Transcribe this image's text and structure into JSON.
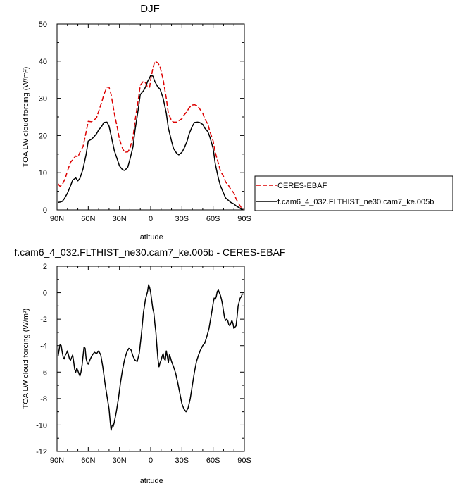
{
  "chart_data": [
    {
      "type": "line",
      "title": "DJF",
      "xlabel": "latitude",
      "ylabel": "TOA LW cloud forcing (W/m²)",
      "xlim": [
        90,
        -90
      ],
      "ylim": [
        0,
        50
      ],
      "x_ticks": [
        90,
        60,
        30,
        0,
        -30,
        -60,
        -90
      ],
      "x_tick_labels": [
        "90N",
        "60N",
        "30N",
        "0",
        "30S",
        "60S",
        "90S"
      ],
      "y_ticks": [
        0,
        10,
        20,
        30,
        40,
        50
      ],
      "y_tick_labels": [
        "0",
        "10",
        "20",
        "30",
        "40",
        "50"
      ],
      "legend": "right",
      "series": [
        {
          "name": "CERES-EBAF",
          "color": "#dd0000",
          "dash": "dashed",
          "x": [
            89,
            87,
            85,
            82,
            80,
            77,
            75,
            72,
            70,
            68,
            65,
            62,
            60,
            57,
            55,
            52,
            50,
            47,
            45,
            42,
            40,
            38,
            35,
            32,
            30,
            27,
            25,
            22,
            20,
            17,
            15,
            12,
            10,
            7,
            5,
            3,
            1,
            0,
            -2,
            -4,
            -7,
            -9,
            -12,
            -15,
            -17,
            -20,
            -22,
            -25,
            -27,
            -30,
            -32,
            -35,
            -37,
            -40,
            -42,
            -45,
            -47,
            -50,
            -52,
            -55,
            -57,
            -60,
            -62,
            -65,
            -67,
            -70,
            -72,
            -75,
            -77,
            -80,
            -82,
            -85,
            -87,
            -89
          ],
          "y": [
            7.0,
            6.3,
            6.8,
            8.5,
            10.5,
            12.8,
            13.5,
            14.5,
            14.2,
            15.5,
            17.0,
            21.0,
            23.8,
            23.7,
            24.0,
            24.8,
            26.5,
            29.0,
            31.0,
            33.0,
            33.0,
            31.0,
            26.0,
            22.0,
            19.0,
            16.5,
            15.5,
            15.6,
            16.5,
            19.5,
            24.0,
            29.5,
            33.5,
            34.6,
            34.2,
            33.0,
            33.0,
            35.0,
            38.0,
            40.0,
            39.5,
            38.5,
            35.0,
            30.0,
            26.0,
            24.0,
            23.6,
            23.6,
            24.0,
            24.5,
            25.5,
            26.5,
            27.5,
            28.2,
            28.3,
            28.0,
            27.2,
            26.0,
            24.5,
            23.0,
            21.0,
            18.5,
            15.5,
            12.5,
            10.5,
            9.0,
            7.5,
            6.5,
            5.5,
            4.5,
            3.0,
            1.5,
            0.6,
            0.3
          ]
        },
        {
          "name": "f.cam6_4_032.FLTHIST_ne30.cam7_ke.005b",
          "color": "#000000",
          "dash": "solid",
          "x": [
            89,
            87,
            85,
            83,
            80,
            77,
            75,
            72,
            70,
            68,
            65,
            62,
            60,
            57,
            55,
            52,
            50,
            47,
            45,
            42,
            40,
            38,
            35,
            32,
            30,
            27,
            25,
            22,
            20,
            17,
            15,
            12,
            10,
            7,
            5,
            3,
            1,
            0,
            -2,
            -4,
            -7,
            -9,
            -12,
            -15,
            -17,
            -20,
            -22,
            -25,
            -27,
            -30,
            -32,
            -35,
            -37,
            -40,
            -42,
            -45,
            -47,
            -50,
            -52,
            -55,
            -57,
            -60,
            -62,
            -65,
            -67,
            -70,
            -72,
            -75,
            -77,
            -80,
            -82,
            -85,
            -87,
            -89
          ],
          "y": [
            2.0,
            2.1,
            2.3,
            3.0,
            4.5,
            6.5,
            8.0,
            8.6,
            7.8,
            8.5,
            11.0,
            15.0,
            18.5,
            19.0,
            19.5,
            20.5,
            21.5,
            22.5,
            23.5,
            23.6,
            22.5,
            20.0,
            16.0,
            13.5,
            11.8,
            10.8,
            10.6,
            11.5,
            13.5,
            17.0,
            21.5,
            27.0,
            31.0,
            32.0,
            33.0,
            34.5,
            35.5,
            36.2,
            36.0,
            34.5,
            33.0,
            32.5,
            30.0,
            26.0,
            22.0,
            18.5,
            16.5,
            15.2,
            14.8,
            15.5,
            16.5,
            18.5,
            20.5,
            22.5,
            23.5,
            23.6,
            23.5,
            23.0,
            22.0,
            21.0,
            19.5,
            16.5,
            12.5,
            8.5,
            6.5,
            4.5,
            3.2,
            2.5,
            2.0,
            1.6,
            1.1,
            0.6,
            0.2,
            0.1
          ]
        }
      ]
    },
    {
      "type": "line",
      "title": "f.cam6_4_032.FLTHIST_ne30.cam7_ke.005b - CERES-EBAF",
      "xlabel": "latitude",
      "ylabel": "TOA LW cloud forcing (W/m²)",
      "xlim": [
        90,
        -90
      ],
      "ylim": [
        -12,
        2
      ],
      "x_ticks": [
        90,
        60,
        30,
        0,
        -30,
        -60,
        -90
      ],
      "x_tick_labels": [
        "90N",
        "60N",
        "30N",
        "0",
        "30S",
        "60S",
        "90S"
      ],
      "y_ticks": [
        -12,
        -10,
        -8,
        -6,
        -4,
        -2,
        0,
        2
      ],
      "y_tick_labels": [
        "-12",
        "-10",
        "-8",
        "-6",
        "-4",
        "-2",
        "0",
        "2"
      ],
      "series": [
        {
          "color": "#000000",
          "dash": "solid",
          "x": [
            89,
            88,
            87,
            86,
            85,
            84,
            83,
            82,
            81,
            80,
            79,
            78,
            77,
            76,
            75,
            74,
            73,
            72,
            71,
            70,
            69,
            68,
            67,
            66,
            65,
            64,
            63,
            62,
            61,
            60,
            58,
            56,
            54,
            52,
            50,
            48,
            46,
            44,
            42,
            40,
            39,
            38,
            37,
            36,
            35,
            33,
            31,
            29,
            27,
            25,
            23,
            21,
            19,
            17,
            15,
            13,
            11,
            9,
            7,
            5,
            3,
            2,
            1,
            0,
            -1,
            -2,
            -3,
            -4,
            -5,
            -6,
            -7,
            -8,
            -9,
            -10,
            -11,
            -12,
            -13,
            -14,
            -15,
            -16,
            -17,
            -18,
            -19,
            -20,
            -22,
            -24,
            -26,
            -28,
            -30,
            -32,
            -34,
            -36,
            -38,
            -40,
            -42,
            -44,
            -46,
            -48,
            -50,
            -52,
            -54,
            -56,
            -58,
            -60,
            -61,
            -62,
            -63,
            -64,
            -65,
            -66,
            -67,
            -68,
            -69,
            -70,
            -71,
            -72,
            -73,
            -74,
            -75,
            -76,
            -77,
            -78,
            -79,
            -80,
            -81,
            -82,
            -83,
            -84,
            -85,
            -86,
            -87,
            -88,
            -89
          ],
          "y": [
            -4.8,
            -4.3,
            -3.9,
            -4.0,
            -4.5,
            -4.9,
            -5.0,
            -4.7,
            -4.6,
            -4.4,
            -4.7,
            -5.0,
            -5.1,
            -4.9,
            -4.7,
            -5.2,
            -5.8,
            -6.0,
            -5.7,
            -5.9,
            -6.1,
            -6.3,
            -6.0,
            -5.5,
            -4.8,
            -4.1,
            -4.2,
            -5.0,
            -5.3,
            -5.4,
            -5.0,
            -4.7,
            -4.5,
            -4.6,
            -4.4,
            -4.7,
            -5.6,
            -6.8,
            -7.8,
            -8.8,
            -9.7,
            -10.4,
            -10.0,
            -10.1,
            -9.8,
            -9.0,
            -8.0,
            -6.8,
            -5.8,
            -5.0,
            -4.5,
            -4.2,
            -4.3,
            -4.8,
            -5.1,
            -5.2,
            -4.6,
            -3.2,
            -1.5,
            -0.5,
            0.1,
            0.6,
            0.4,
            0.0,
            -0.6,
            -1.2,
            -1.5,
            -2.3,
            -3.0,
            -4.1,
            -5.0,
            -5.6,
            -5.3,
            -5.1,
            -4.8,
            -4.6,
            -5.0,
            -5.1,
            -4.4,
            -4.8,
            -5.3,
            -4.7,
            -4.9,
            -5.2,
            -5.6,
            -6.1,
            -6.8,
            -7.6,
            -8.4,
            -8.8,
            -9.0,
            -8.7,
            -8.0,
            -7.0,
            -6.0,
            -5.2,
            -4.7,
            -4.3,
            -4.0,
            -3.8,
            -3.3,
            -2.7,
            -1.8,
            -0.8,
            -0.4,
            -0.5,
            -0.3,
            0.1,
            0.2,
            0.0,
            -0.2,
            -0.5,
            -0.9,
            -1.4,
            -1.9,
            -2.1,
            -2.0,
            -2.1,
            -2.4,
            -2.5,
            -2.3,
            -2.1,
            -2.3,
            -2.7,
            -2.6,
            -2.5,
            -1.8,
            -1.0,
            -0.7,
            -0.4,
            -0.3,
            -0.1,
            -0.1
          ]
        }
      ]
    }
  ]
}
